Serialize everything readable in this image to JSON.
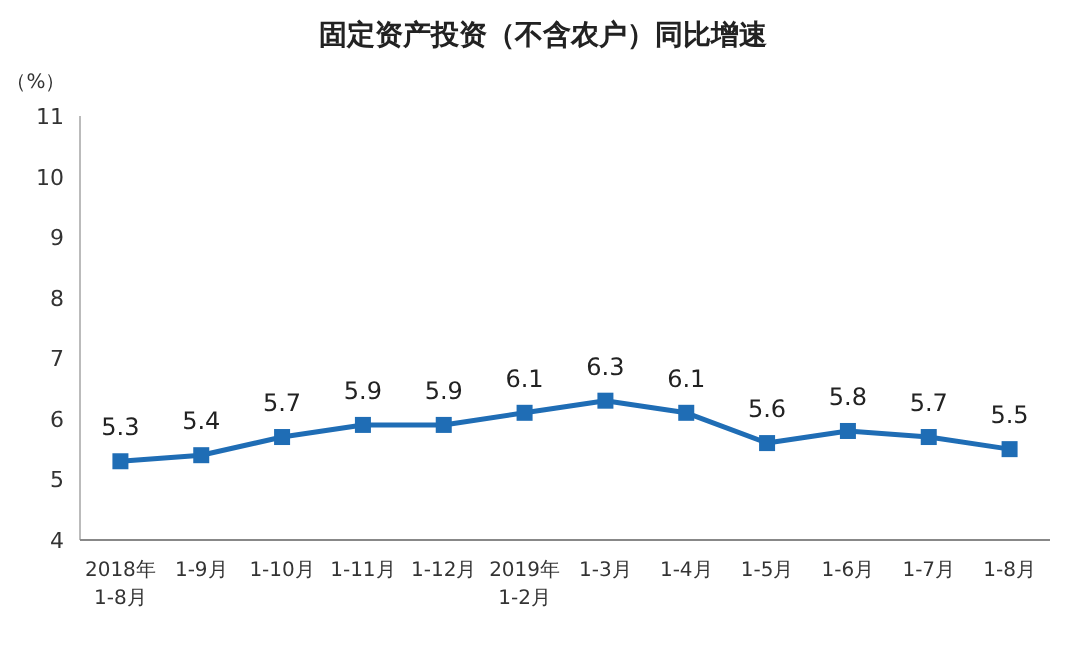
{
  "chart_data": {
    "type": "line",
    "title": "固定资产投资（不含农户）同比增速",
    "ylabel": "（%）",
    "categories": [
      "2018年\n1-8月",
      "1-9月",
      "1-10月",
      "1-11月",
      "1-12月",
      "2019年\n1-2月",
      "1-3月",
      "1-4月",
      "1-5月",
      "1-6月",
      "1-7月",
      "1-8月"
    ],
    "series": [
      {
        "color": "#1f6db5",
        "values": [
          5.3,
          5.4,
          5.7,
          5.9,
          5.9,
          6.1,
          6.3,
          6.1,
          5.6,
          5.8,
          5.7,
          5.5
        ]
      }
    ],
    "ylim": [
      4,
      11
    ],
    "yticks": [
      4,
      5,
      6,
      7,
      8,
      9,
      10,
      11
    ],
    "marker": "square",
    "data_labels": true,
    "grid": false
  }
}
